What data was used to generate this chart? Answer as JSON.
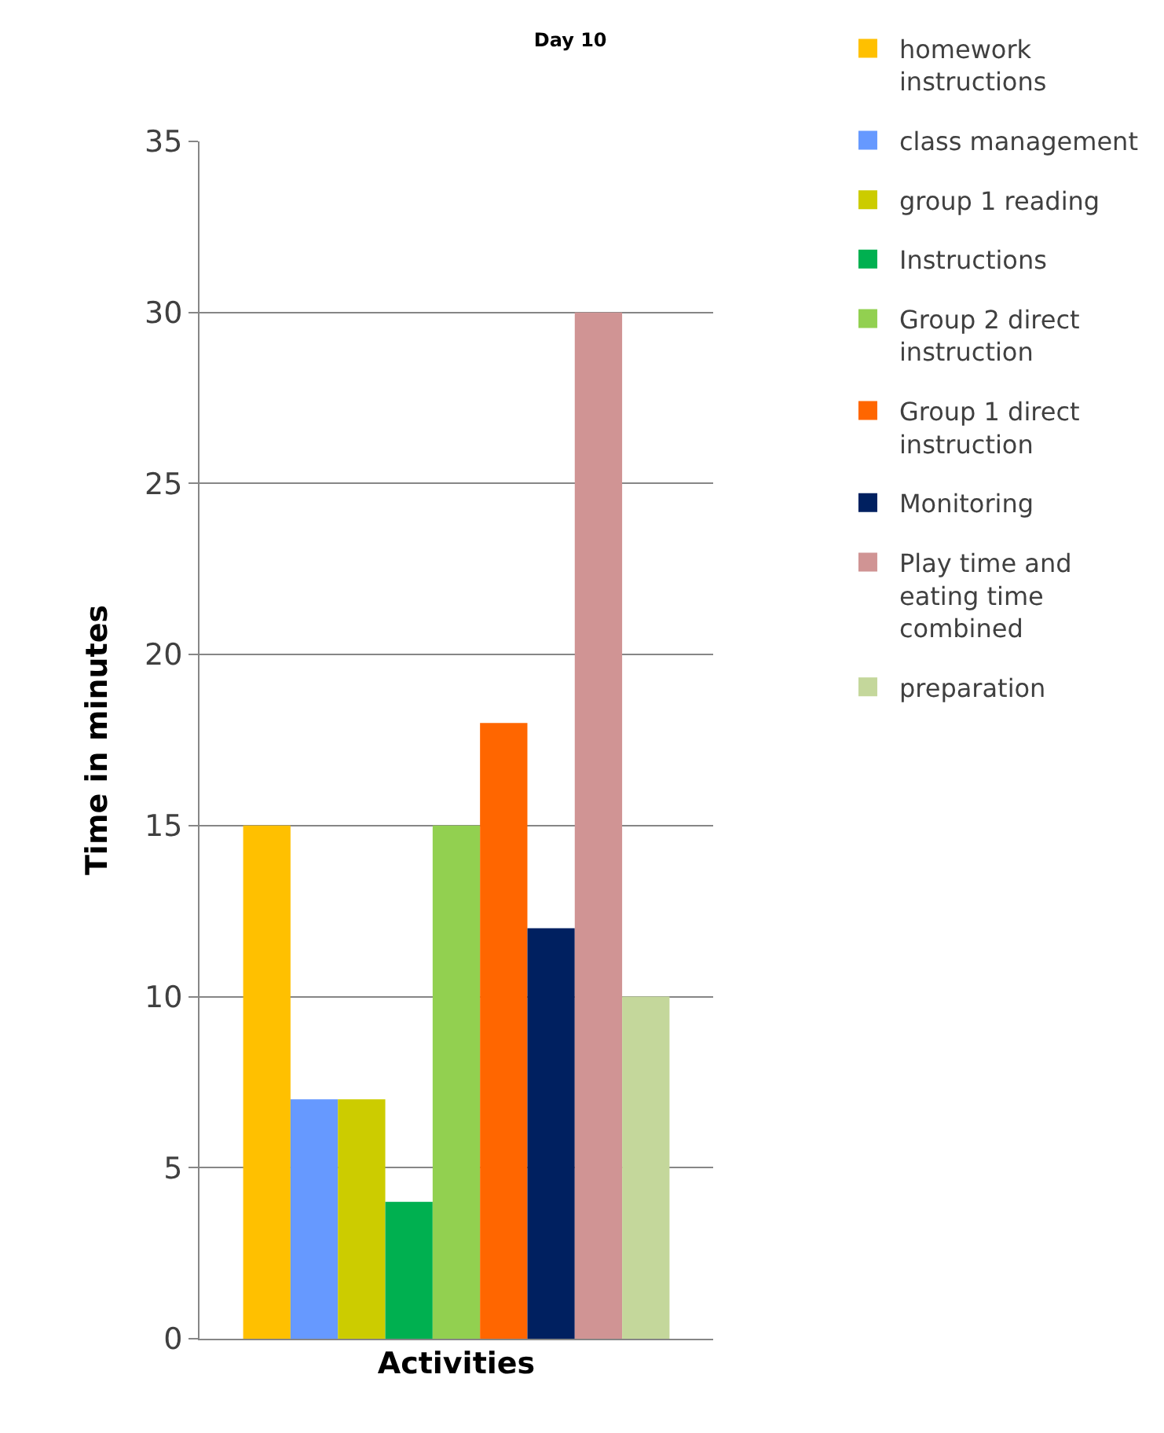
{
  "chart_data": {
    "type": "bar",
    "title": "Day 10",
    "xlabel": "Activities",
    "ylabel": "Time in minutes",
    "categories": [
      null
    ],
    "series": [
      {
        "name": "homework instructions",
        "color": "#ffc000",
        "values": [
          15
        ]
      },
      {
        "name": "class management",
        "color": "#6699ff",
        "values": [
          7
        ]
      },
      {
        "name": "group 1 reading",
        "color": "#cccc00",
        "values": [
          7
        ]
      },
      {
        "name": "Instructions",
        "color": "#00b050",
        "values": [
          4
        ]
      },
      {
        "name": "Group 2 direct instruction",
        "color": "#92d050",
        "values": [
          15
        ]
      },
      {
        "name": "Group 1 direct instruction",
        "color": "#ff6600",
        "values": [
          18
        ]
      },
      {
        "name": "Monitoring",
        "color": "#002060",
        "values": [
          12
        ]
      },
      {
        "name": "Play time and eating time combined",
        "color": "#d09494",
        "values": [
          30
        ]
      },
      {
        "name": "preparation",
        "color": "#c4d79b",
        "values": [
          10
        ]
      }
    ],
    "ylim": [
      0,
      35
    ],
    "yticks": [
      0,
      5,
      10,
      15,
      20,
      25,
      30,
      35
    ],
    "grid": "y",
    "legend": "right",
    "tick_labels": "y"
  }
}
